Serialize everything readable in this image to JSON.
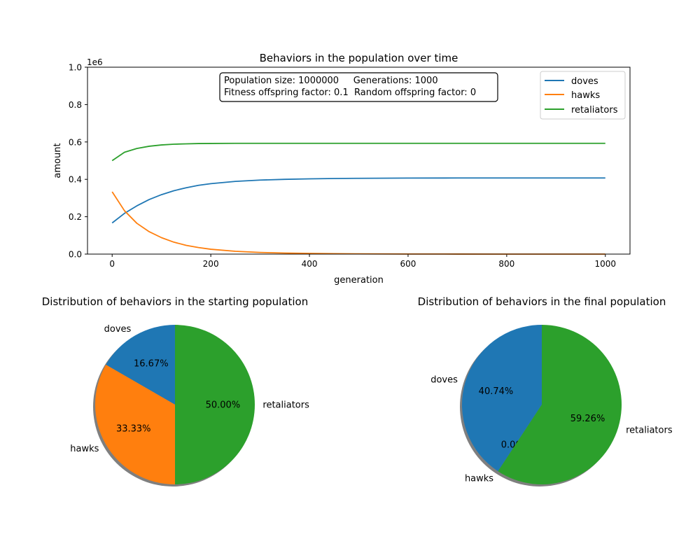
{
  "chart_data": [
    {
      "type": "line",
      "title": "Behaviors in the population over time",
      "xlabel": "generation",
      "ylabel": "amount",
      "y_offset_text": "1e6",
      "xlim": [
        -50,
        1050
      ],
      "ylim": [
        0,
        1000000
      ],
      "xticks": [
        0,
        200,
        400,
        600,
        800,
        1000
      ],
      "xtick_labels": [
        "0",
        "200",
        "400",
        "600",
        "800",
        "1000"
      ],
      "yticks": [
        0,
        200000,
        400000,
        600000,
        800000,
        1000000
      ],
      "ytick_labels": [
        "0.0",
        "0.2",
        "0.4",
        "0.6",
        "0.8",
        "1.0"
      ],
      "legend_position": "top-right",
      "grid": false,
      "info_box": [
        "Population size: 1000000     Generations: 1000",
        "Fitness offspring factor: 0.1  Random offspring factor: 0"
      ],
      "series": [
        {
          "name": "doves",
          "color": "#1f77b4",
          "x": [
            0,
            25,
            50,
            75,
            100,
            125,
            150,
            175,
            200,
            250,
            300,
            350,
            400,
            450,
            500,
            600,
            700,
            800,
            900,
            1000
          ],
          "values": [
            166667,
            218000,
            258000,
            292000,
            318000,
            339000,
            355000,
            368000,
            377000,
            389000,
            396000,
            400000,
            402500,
            404500,
            405500,
            406800,
            407200,
            407400,
            407400,
            407400
          ]
        },
        {
          "name": "hawks",
          "color": "#ff7f0e",
          "x": [
            0,
            25,
            50,
            75,
            100,
            125,
            150,
            175,
            200,
            250,
            300,
            350,
            400,
            450,
            500,
            600,
            700,
            800,
            900,
            1000
          ],
          "values": [
            333333,
            232000,
            165000,
            120000,
            88000,
            64000,
            47000,
            35000,
            26000,
            15000,
            9000,
            5500,
            3500,
            2200,
            1400,
            600,
            250,
            100,
            40,
            0
          ]
        },
        {
          "name": "retaliators",
          "color": "#2ca02c",
          "x": [
            0,
            25,
            50,
            75,
            100,
            125,
            150,
            175,
            200,
            250,
            300,
            350,
            400,
            450,
            500,
            600,
            700,
            800,
            900,
            1000
          ],
          "values": [
            500000,
            545000,
            565000,
            577000,
            584000,
            588000,
            590000,
            591500,
            592000,
            592600,
            592600,
            592600,
            592600,
            592600,
            592600,
            592600,
            592600,
            592600,
            592600,
            592600
          ]
        }
      ]
    },
    {
      "type": "pie",
      "title": "Distribution of behaviors in the starting population",
      "labels": [
        "doves",
        "hawks",
        "retaliators"
      ],
      "values": [
        16.67,
        33.33,
        50.0
      ],
      "pct_labels": [
        "16.67%",
        "33.33%",
        "50.00%"
      ],
      "colors": [
        "#1f77b4",
        "#ff7f0e",
        "#2ca02c"
      ],
      "start_angle": 90,
      "shadow": true
    },
    {
      "type": "pie",
      "title": "Distribution of behaviors in the final population",
      "labels": [
        "doves",
        "hawks",
        "retaliators"
      ],
      "values": [
        40.74,
        0.0,
        59.26
      ],
      "pct_labels": [
        "40.74%",
        "0.00%",
        "59.26%"
      ],
      "colors": [
        "#1f77b4",
        "#ff7f0e",
        "#2ca02c"
      ],
      "start_angle": 90,
      "shadow": true
    }
  ]
}
